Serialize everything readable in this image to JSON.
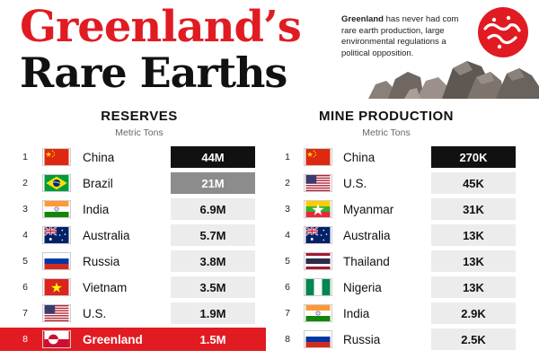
{
  "title": {
    "line1": "Greenland’s",
    "line2": "Rare Earths"
  },
  "intro": {
    "bold": "Greenland",
    "line1": " has never had com",
    "line2": "rare earth production, large",
    "line3": "environmental regulations a",
    "line4": "political opposition."
  },
  "colors": {
    "accent": "#e11b22",
    "bar_top": "#111111",
    "bar_second": "#8c8c8c",
    "bar_rest": "#ececec"
  },
  "chart_data": [
    {
      "type": "table",
      "title": "RESERVES",
      "subtitle": "Metric Tons",
      "rows": [
        {
          "rank": "1",
          "country": "China",
          "flag": "china-flag-icon",
          "value": 44000000,
          "label": "44M"
        },
        {
          "rank": "2",
          "country": "Brazil",
          "flag": "brazil-flag-icon",
          "value": 21000000,
          "label": "21M"
        },
        {
          "rank": "3",
          "country": "India",
          "flag": "india-flag-icon",
          "value": 6900000,
          "label": "6.9M"
        },
        {
          "rank": "4",
          "country": "Australia",
          "flag": "australia-flag-icon",
          "value": 5700000,
          "label": "5.7M"
        },
        {
          "rank": "5",
          "country": "Russia",
          "flag": "russia-flag-icon",
          "value": 3800000,
          "label": "3.8M"
        },
        {
          "rank": "6",
          "country": "Vietnam",
          "flag": "vietnam-flag-icon",
          "value": 3500000,
          "label": "3.5M"
        },
        {
          "rank": "7",
          "country": "U.S.",
          "flag": "us-flag-icon",
          "value": 1900000,
          "label": "1.9M"
        },
        {
          "rank": "8",
          "country": "Greenland",
          "flag": "greenland-flag-icon",
          "value": 1500000,
          "label": "1.5M",
          "highlight": true
        }
      ]
    },
    {
      "type": "table",
      "title": "MINE PRODUCTION",
      "subtitle": "Metric Tons",
      "rows": [
        {
          "rank": "1",
          "country": "China",
          "flag": "china-flag-icon",
          "value": 270000,
          "label": "270K"
        },
        {
          "rank": "2",
          "country": "U.S.",
          "flag": "us-flag-icon",
          "value": 45000,
          "label": "45K"
        },
        {
          "rank": "3",
          "country": "Myanmar",
          "flag": "myanmar-flag-icon",
          "value": 31000,
          "label": "31K"
        },
        {
          "rank": "4",
          "country": "Australia",
          "flag": "australia-flag-icon",
          "value": 13000,
          "label": "13K"
        },
        {
          "rank": "5",
          "country": "Thailand",
          "flag": "thailand-flag-icon",
          "value": 13000,
          "label": "13K"
        },
        {
          "rank": "6",
          "country": "Nigeria",
          "flag": "nigeria-flag-icon",
          "value": 13000,
          "label": "13K"
        },
        {
          "rank": "7",
          "country": "India",
          "flag": "india-flag-icon",
          "value": 2900,
          "label": "2.9K"
        },
        {
          "rank": "8",
          "country": "Russia",
          "flag": "russia-flag-icon",
          "value": 2500,
          "label": "2.5K"
        }
      ]
    }
  ]
}
